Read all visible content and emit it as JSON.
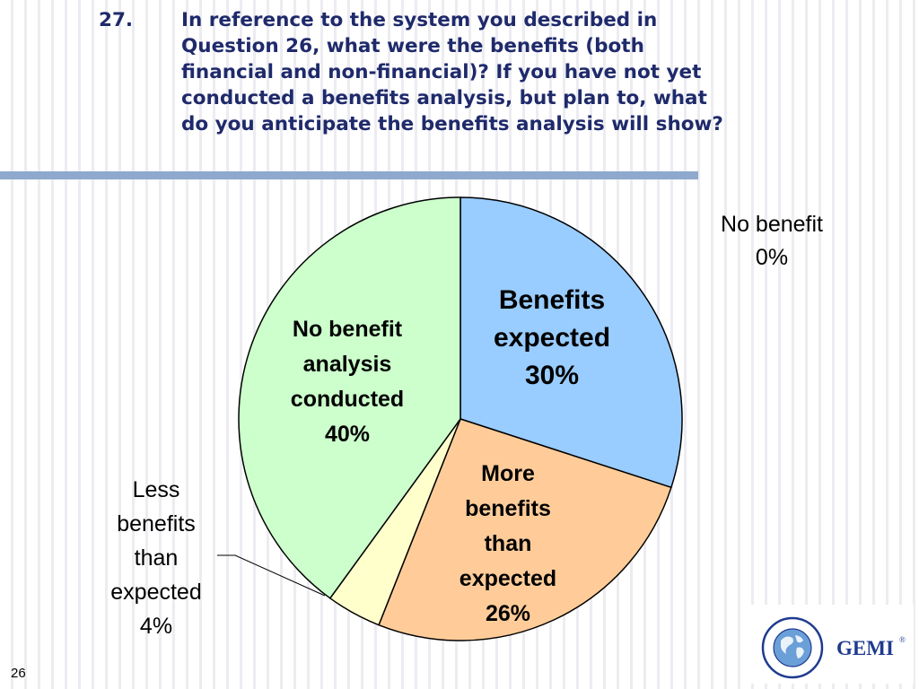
{
  "question": {
    "number": "27.",
    "lines": [
      "In reference to the system you described in",
      "Question 26, what were the benefits (both",
      "financial and non-financial)? If you have not yet",
      "conducted a benefits analysis, but plan to, what",
      "do you anticipate the benefits analysis will show?"
    ]
  },
  "slide_number": "26",
  "logo": {
    "text": "GEMI",
    "registered": "®",
    "icon": "globe-icon"
  },
  "colors": {
    "title": "#1f2a6b",
    "rule": "#8ea9cd",
    "benefits_expected": "#99ccff",
    "more_benefits": "#ffcc99",
    "less_benefits": "#ffffcc",
    "no_analysis": "#ccffcc",
    "logo_blue": "#1f3b8f"
  },
  "chart_data": {
    "type": "pie",
    "title": "",
    "slices": [
      {
        "key": "benefits_expected",
        "label_lines": [
          "Benefits",
          "expected",
          "30%"
        ],
        "value": 30,
        "color": "#99ccff",
        "bold": true
      },
      {
        "key": "more_benefits",
        "label_lines": [
          "More",
          "benefits",
          "than",
          "expected",
          "26%"
        ],
        "value": 26,
        "color": "#ffcc99",
        "bold": true
      },
      {
        "key": "less_benefits",
        "label_lines": [
          "Less",
          "benefits",
          "than",
          "expected",
          "4%"
        ],
        "value": 4,
        "color": "#ffffcc",
        "bold": false
      },
      {
        "key": "no_benefit",
        "label_lines": [
          "No benefit",
          "0%"
        ],
        "value": 0,
        "color": "#ffffff",
        "bold": false
      },
      {
        "key": "no_analysis",
        "label_lines": [
          "No benefit",
          "analysis",
          "conducted",
          "40%"
        ],
        "value": 40,
        "color": "#ccffcc",
        "bold": true
      }
    ]
  }
}
